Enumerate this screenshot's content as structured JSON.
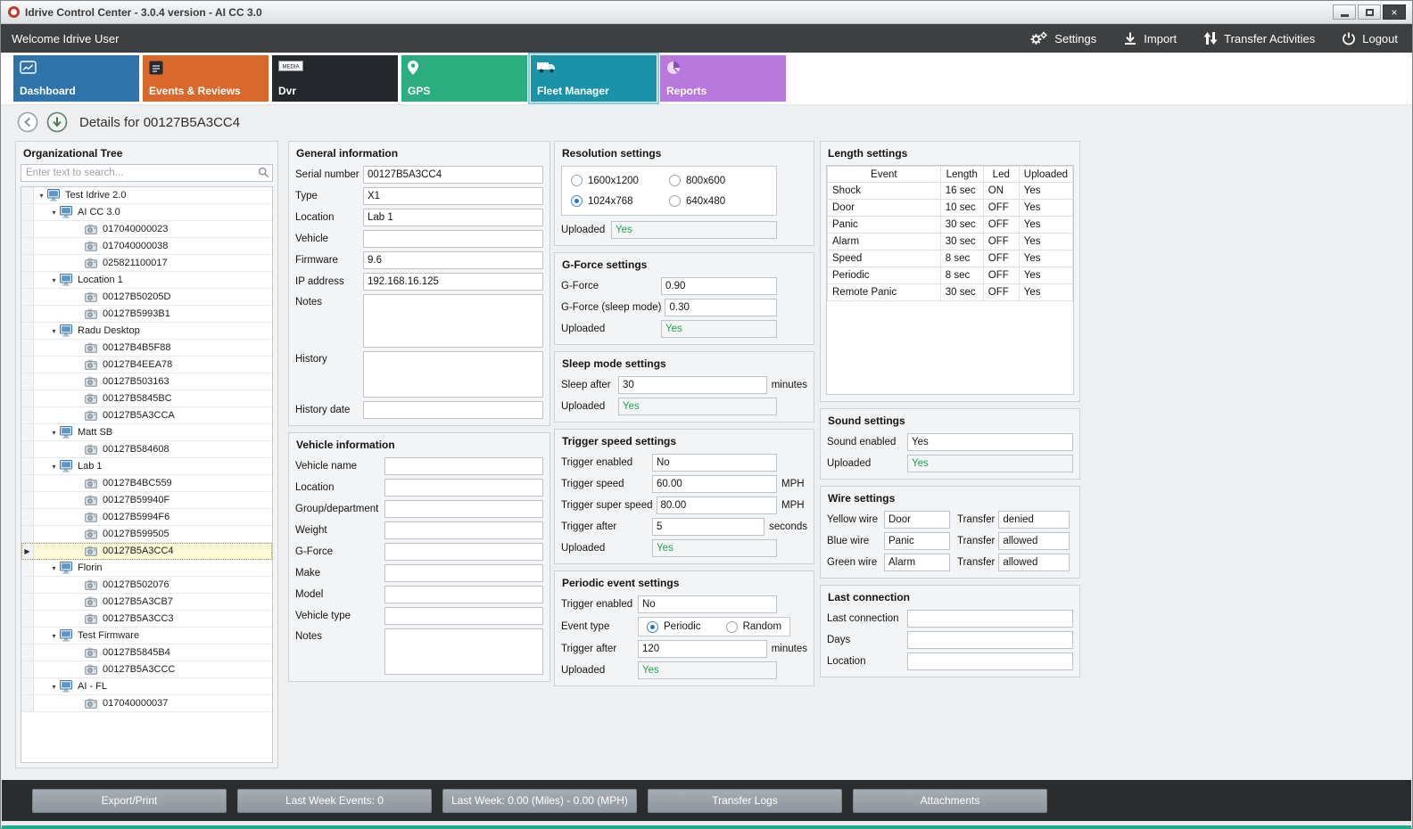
{
  "window": {
    "title": "Idrive Control Center - 3.0.4 version - AI CC 3.0"
  },
  "colors": {
    "uploaded_green": "#1ba551",
    "selected_tab_outline": "#7fd0ea",
    "bottom_accent": "#1fa98d"
  },
  "toolbar": {
    "welcome": "Welcome Idrive User",
    "settings": "Settings",
    "import": "Import",
    "transfer_activities": "Transfer Activities",
    "logout": "Logout"
  },
  "tabs": [
    {
      "label": "Dashboard",
      "color": "#2e73a9",
      "selected": false
    },
    {
      "label": "Events & Reviews",
      "color": "#d8682b",
      "selected": false
    },
    {
      "label": "Dvr",
      "color": "#24272b",
      "selected": false
    },
    {
      "label": "GPS",
      "color": "#2aae80",
      "selected": false
    },
    {
      "label": "Fleet Manager",
      "color": "#1a93a9",
      "selected": true
    },
    {
      "label": "Reports",
      "color": "#b878de",
      "selected": false
    }
  ],
  "page_title": "Details for 00127B5A3CC4",
  "org_tree": {
    "title": "Organizational Tree",
    "search_placeholder": "Enter text to search...",
    "items": [
      {
        "label": "Test Idrive 2.0",
        "level": 0,
        "type": "group"
      },
      {
        "label": "AI CC 3.0",
        "level": 1,
        "type": "group"
      },
      {
        "label": "017040000023",
        "level": 2,
        "type": "device"
      },
      {
        "label": "017040000038",
        "level": 2,
        "type": "device"
      },
      {
        "label": "025821100017",
        "level": 2,
        "type": "device"
      },
      {
        "label": "Location 1",
        "level": 1,
        "type": "group"
      },
      {
        "label": "00127B50205D",
        "level": 2,
        "type": "device"
      },
      {
        "label": "00127B5993B1",
        "level": 2,
        "type": "device"
      },
      {
        "label": "Radu Desktop",
        "level": 1,
        "type": "group"
      },
      {
        "label": "00127B4B5F88",
        "level": 2,
        "type": "device"
      },
      {
        "label": "00127B4EEA78",
        "level": 2,
        "type": "device"
      },
      {
        "label": "00127B503163",
        "level": 2,
        "type": "device"
      },
      {
        "label": "00127B5845BC",
        "level": 2,
        "type": "device"
      },
      {
        "label": "00127B5A3CCA",
        "level": 2,
        "type": "device"
      },
      {
        "label": "Matt SB",
        "level": 1,
        "type": "group"
      },
      {
        "label": "00127B584608",
        "level": 2,
        "type": "device"
      },
      {
        "label": "Lab 1",
        "level": 1,
        "type": "group"
      },
      {
        "label": "00127B4BC559",
        "level": 2,
        "type": "device"
      },
      {
        "label": "00127B59940F",
        "level": 2,
        "type": "device"
      },
      {
        "label": "00127B5994F6",
        "level": 2,
        "type": "device"
      },
      {
        "label": "00127B599505",
        "level": 2,
        "type": "device"
      },
      {
        "label": "00127B5A3CC4",
        "level": 2,
        "type": "device",
        "selected": true
      },
      {
        "label": "Florin",
        "level": 1,
        "type": "group"
      },
      {
        "label": "00127B502076",
        "level": 2,
        "type": "device"
      },
      {
        "label": "00127B5A3CB7",
        "level": 2,
        "type": "device"
      },
      {
        "label": "00127B5A3CC3",
        "level": 2,
        "type": "device"
      },
      {
        "label": "Test Firmware",
        "level": 1,
        "type": "group"
      },
      {
        "label": "00127B5845B4",
        "level": 2,
        "type": "device"
      },
      {
        "label": "00127B5A3CCC",
        "level": 2,
        "type": "device"
      },
      {
        "label": "AI - FL",
        "level": 1,
        "type": "group"
      },
      {
        "label": "017040000037",
        "level": 2,
        "type": "device"
      }
    ]
  },
  "general_information": {
    "title": "General information",
    "fields": [
      {
        "label": "Serial number",
        "value": "00127B5A3CC4"
      },
      {
        "label": "Type",
        "value": "X1"
      },
      {
        "label": "Location",
        "value": "Lab 1"
      },
      {
        "label": "Vehicle",
        "value": ""
      },
      {
        "label": "Firmware",
        "value": "9.6"
      },
      {
        "label": "IP address",
        "value": "192.168.16.125"
      },
      {
        "label": "Notes",
        "value": ""
      },
      {
        "label": "History",
        "value": ""
      },
      {
        "label": "History date",
        "value": ""
      }
    ]
  },
  "vehicle_information": {
    "title": "Vehicle information",
    "fields": [
      {
        "label": "Vehicle name",
        "value": ""
      },
      {
        "label": "Location",
        "value": ""
      },
      {
        "label": "Group/department",
        "value": ""
      },
      {
        "label": "Weight",
        "value": ""
      },
      {
        "label": "G-Force",
        "value": ""
      },
      {
        "label": "Make",
        "value": ""
      },
      {
        "label": "Model",
        "value": ""
      },
      {
        "label": "Vehicle type",
        "value": ""
      },
      {
        "label": "Notes",
        "value": ""
      }
    ]
  },
  "resolution_settings": {
    "title": "Resolution settings",
    "options": [
      {
        "label": "1600x1200",
        "selected": false
      },
      {
        "label": "800x600",
        "selected": false
      },
      {
        "label": "1024x768",
        "selected": true
      },
      {
        "label": "640x480",
        "selected": false
      }
    ],
    "uploaded_label": "Uploaded",
    "uploaded_value": "Yes"
  },
  "gforce_settings": {
    "title": "G-Force settings",
    "fields": [
      {
        "label": "G-Force",
        "value": "0.90"
      },
      {
        "label": "G-Force (sleep mode)",
        "value": "0.30"
      },
      {
        "label": "Uploaded",
        "value": "Yes"
      }
    ]
  },
  "sleep_mode_settings": {
    "title": "Sleep mode settings",
    "fields": [
      {
        "label": "Sleep after",
        "value": "30",
        "suffix": "minutes"
      },
      {
        "label": "Uploaded",
        "value": "Yes"
      }
    ]
  },
  "trigger_speed_settings": {
    "title": "Trigger speed settings",
    "fields": [
      {
        "label": "Trigger enabled",
        "value": "No"
      },
      {
        "label": "Trigger speed",
        "value": "60.00",
        "suffix": "MPH"
      },
      {
        "label": "Trigger super speed",
        "value": "80.00",
        "suffix": "MPH"
      },
      {
        "label": "Trigger after",
        "value": "5",
        "suffix": "seconds"
      },
      {
        "label": "Uploaded",
        "value": "Yes"
      }
    ]
  },
  "periodic_event_settings": {
    "title": "Periodic event settings",
    "trigger_enabled_label": "Trigger enabled",
    "trigger_enabled_value": "No",
    "event_type_label": "Event type",
    "event_type_options": [
      {
        "label": "Periodic",
        "selected": true
      },
      {
        "label": "Random",
        "selected": false
      }
    ],
    "trigger_after_label": "Trigger after",
    "trigger_after_value": "120",
    "trigger_after_suffix": "minutes",
    "uploaded_label": "Uploaded",
    "uploaded_value": "Yes"
  },
  "length_settings": {
    "title": "Length settings",
    "columns": [
      "Event",
      "Length",
      "Led",
      "Uploaded"
    ],
    "rows": [
      [
        "Shock",
        "16 sec",
        "ON",
        "Yes"
      ],
      [
        "Door",
        "10 sec",
        "OFF",
        "Yes"
      ],
      [
        "Panic",
        "30 sec",
        "OFF",
        "Yes"
      ],
      [
        "Alarm",
        "30 sec",
        "OFF",
        "Yes"
      ],
      [
        "Speed",
        "8 sec",
        "OFF",
        "Yes"
      ],
      [
        "Periodic",
        "8 sec",
        "OFF",
        "Yes"
      ],
      [
        "Remote Panic",
        "30 sec",
        "OFF",
        "Yes"
      ]
    ]
  },
  "sound_settings": {
    "title": "Sound settings",
    "fields": [
      {
        "label": "Sound enabled",
        "value": "Yes"
      },
      {
        "label": "Uploaded",
        "value": "Yes"
      }
    ]
  },
  "wire_settings": {
    "title": "Wire settings",
    "rows": [
      {
        "label": "Yellow wire",
        "value": "Door",
        "transfer_label": "Transfer",
        "transfer_value": "denied"
      },
      {
        "label": "Blue wire",
        "value": "Panic",
        "transfer_label": "Transfer",
        "transfer_value": "allowed"
      },
      {
        "label": "Green wire",
        "value": "Alarm",
        "transfer_label": "Transfer",
        "transfer_value": "allowed"
      }
    ]
  },
  "last_connection": {
    "title": "Last connection",
    "fields": [
      {
        "label": "Last connection",
        "value": ""
      },
      {
        "label": "Days",
        "value": ""
      },
      {
        "label": "Location",
        "value": ""
      }
    ]
  },
  "footer": {
    "buttons": [
      "Export/Print",
      "Last Week Events: 0",
      "Last Week: 0.00 (Miles) - 0.00 (MPH)",
      "Transfer Logs",
      "Attachments"
    ]
  }
}
